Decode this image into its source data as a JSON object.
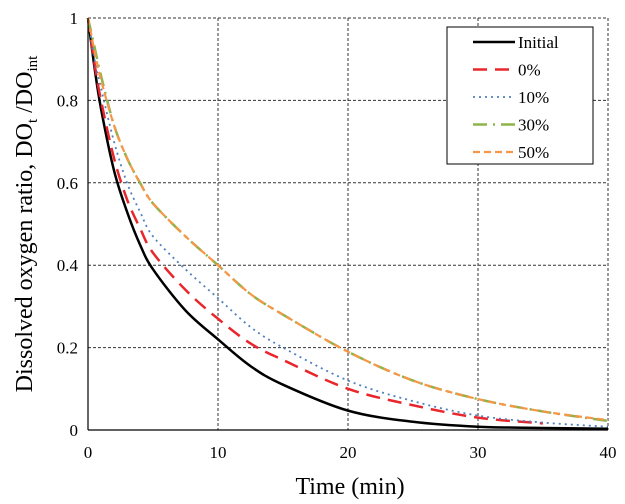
{
  "chart_data": {
    "type": "line",
    "title": "",
    "xlabel": "Time (min)",
    "ylabel_parts": [
      "Dissolved oxygen ratio, DO",
      "t",
      " /DO",
      "int"
    ],
    "xlim": [
      0,
      40
    ],
    "ylim": [
      0,
      1
    ],
    "xticks": [
      "0",
      "10",
      "20",
      "30",
      "40"
    ],
    "yticks": [
      "0",
      "0.2",
      "0.4",
      "0.6",
      "0.8",
      "1"
    ],
    "grid": true,
    "legend_placement": "top-right",
    "x": [
      0,
      0.5,
      1,
      2,
      3,
      4,
      5,
      7.5,
      10,
      12.5,
      15,
      20,
      25,
      30,
      35,
      40
    ],
    "series": [
      {
        "name": "Initial",
        "color": "#000000",
        "style": "solid",
        "values": [
          1,
          0.88,
          0.78,
          0.63,
          0.53,
          0.45,
          0.39,
          0.29,
          0.22,
          0.155,
          0.11,
          0.047,
          0.02,
          0.008,
          0.005,
          0.003
        ]
      },
      {
        "name": "0%",
        "color": "#e8262b",
        "style": "long-dash",
        "values": [
          1,
          0.89,
          0.8,
          0.66,
          0.56,
          0.49,
          0.43,
          0.34,
          0.27,
          0.21,
          0.17,
          0.1,
          0.06,
          0.03,
          0.016,
          null
        ]
      },
      {
        "name": "10%",
        "color": "#4f81bd",
        "style": "dotted",
        "values": [
          1,
          0.9,
          0.83,
          0.7,
          0.6,
          0.53,
          0.47,
          0.39,
          0.32,
          0.25,
          0.2,
          0.12,
          0.07,
          0.035,
          0.018,
          0.008
        ]
      },
      {
        "name": "30%",
        "color": "#8db34a",
        "style": "dash-dot",
        "values": [
          1,
          0.93,
          0.86,
          0.74,
          0.66,
          0.6,
          0.55,
          0.47,
          0.4,
          0.33,
          0.28,
          0.19,
          0.12,
          0.075,
          0.045,
          0.022
        ]
      },
      {
        "name": "50%",
        "color": "#f79646",
        "style": "short-dash",
        "values": [
          1,
          0.92,
          0.85,
          0.74,
          0.66,
          0.6,
          0.55,
          0.47,
          0.4,
          0.33,
          0.28,
          0.19,
          0.12,
          0.075,
          0.045,
          0.024
        ]
      }
    ]
  }
}
